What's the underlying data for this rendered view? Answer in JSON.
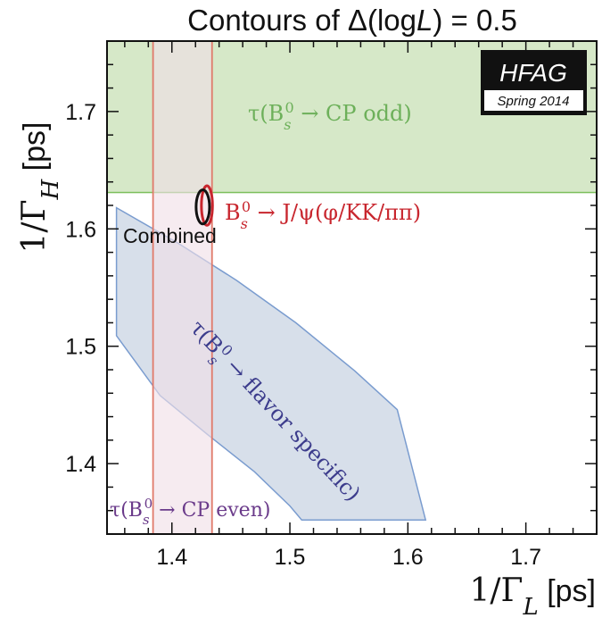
{
  "chart_data": {
    "type": "area",
    "title": "Contours of Δ(logL) = 0.5",
    "xlabel": "1/Γ_L [ps]",
    "ylabel": "1/Γ_H [ps]",
    "xlim": [
      1.345,
      1.76
    ],
    "ylim": [
      1.34,
      1.76
    ],
    "x_ticks": [
      1.4,
      1.5,
      1.6,
      1.7
    ],
    "y_ticks": [
      1.4,
      1.5,
      1.6,
      1.7
    ],
    "x_tick_labels": [
      "1.4",
      "1.5",
      "1.6",
      "1.7"
    ],
    "y_tick_labels": [
      "1.4",
      "1.5",
      "1.6",
      "1.7"
    ],
    "grid": false,
    "series": [
      {
        "name": "τ(B_s^0 → CP odd)",
        "shape": "horizontal band",
        "y_min": 1.631,
        "y_max": 1.76,
        "color": "#7cbf5c",
        "fill": "#d6e8c8"
      },
      {
        "name": "τ(B_s^0 → CP even)",
        "shape": "vertical band",
        "x_min": 1.384,
        "x_max": 1.434,
        "color": "#e07a6a",
        "fill": "#f0dfe6"
      },
      {
        "name": "τ(B_s^0 → flavor specific)",
        "shape": "polygon",
        "points": [
          [
            1.353,
            1.618
          ],
          [
            1.405,
            1.588
          ],
          [
            1.455,
            1.556
          ],
          [
            1.505,
            1.52
          ],
          [
            1.555,
            1.479
          ],
          [
            1.591,
            1.446
          ],
          [
            1.615,
            1.352
          ],
          [
            1.51,
            1.352
          ],
          [
            1.5,
            1.364
          ],
          [
            1.47,
            1.393
          ],
          [
            1.43,
            1.425
          ],
          [
            1.39,
            1.458
          ],
          [
            1.353,
            1.509
          ]
        ],
        "color": "#7a9ccf",
        "fill": "#d3dce8"
      },
      {
        "name": "B_s^0 → J/ψ(φ/KK/ππ)",
        "shape": "ellipse",
        "center": [
          1.4297,
          1.6199
        ],
        "rx": 0.0047,
        "ry": 0.0168,
        "color": "#c8262e"
      },
      {
        "name": "Combined",
        "shape": "ellipse",
        "center": [
          1.4262,
          1.6187
        ],
        "rx": 0.0057,
        "ry": 0.0145,
        "color": "#111111"
      }
    ],
    "annotations": {
      "cp_odd": "τ(B_s^0 → CP odd)",
      "cp_even": "τ(B_s^0 → CP even)",
      "flavor_specific": "τ(B_s^0 → flavor specific)",
      "jpsi": "B_s^0 → J/ψ(φ/KK/ππ)",
      "combined": "Combined"
    },
    "logo": {
      "title": "HFAG",
      "subtitle": "Spring 2014"
    },
    "colors": {
      "cp_odd": "#6db05a",
      "cp_even": "#6a3a8a",
      "flavor": "#3c3c8c",
      "jpsi": "#c8262e",
      "combined": "#111111"
    }
  }
}
